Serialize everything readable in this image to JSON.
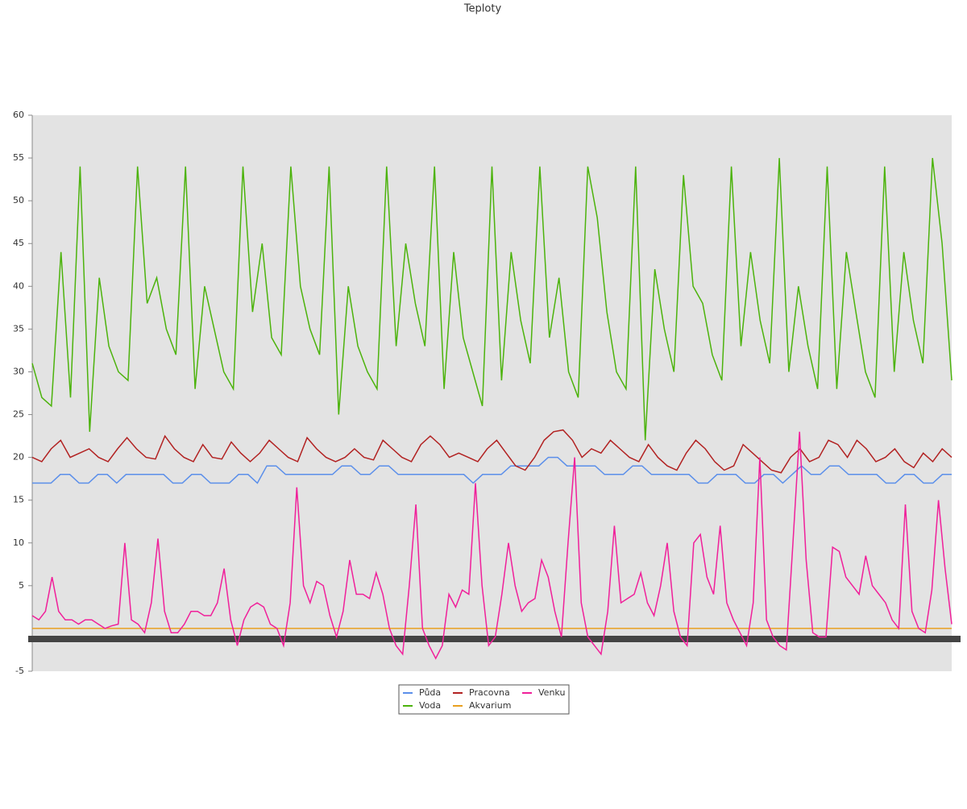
{
  "chart_data": {
    "type": "line",
    "title": "Teploty",
    "ylim": [
      -5,
      60
    ],
    "yticks": [
      -5,
      5,
      10,
      15,
      20,
      25,
      30,
      35,
      40,
      45,
      50,
      55,
      60
    ],
    "grid": false,
    "legend": "bottom",
    "series": [
      {
        "name": "Půda",
        "color": "#5b8fea",
        "values": [
          17,
          17,
          17,
          18,
          18,
          17,
          17,
          18,
          18,
          17,
          18,
          18,
          18,
          18,
          18,
          17,
          17,
          18,
          18,
          17,
          17,
          17,
          18,
          18,
          17,
          19,
          19,
          18,
          18,
          18,
          18,
          18,
          18,
          19,
          19,
          18,
          18,
          19,
          19,
          18,
          18,
          18,
          18,
          18,
          18,
          18,
          18,
          17,
          18,
          18,
          18,
          19,
          19,
          19,
          19,
          20,
          20,
          19,
          19,
          19,
          19,
          18,
          18,
          18,
          19,
          19,
          18,
          18,
          18,
          18,
          18,
          17,
          17,
          18,
          18,
          18,
          17,
          17,
          18,
          18,
          17,
          18,
          19,
          18,
          18,
          19,
          19,
          18,
          18,
          18,
          18,
          17,
          17,
          18,
          18,
          17,
          17,
          18,
          18
        ]
      },
      {
        "name": "Voda",
        "color": "#4cb30c",
        "values": [
          31,
          27,
          26,
          44,
          27,
          54,
          23,
          41,
          33,
          30,
          29,
          54,
          38,
          41,
          35,
          32,
          54,
          28,
          40,
          35,
          30,
          28,
          54,
          37,
          45,
          34,
          32,
          54,
          40,
          35,
          32,
          54,
          25,
          40,
          33,
          30,
          28,
          54,
          33,
          45,
          38,
          33,
          54,
          28,
          44,
          34,
          30,
          26,
          54,
          29,
          44,
          36,
          31,
          54,
          34,
          41,
          30,
          27,
          54,
          48,
          37,
          30,
          28,
          54,
          22,
          42,
          35,
          30,
          53,
          40,
          38,
          32,
          29,
          54,
          33,
          44,
          36,
          31,
          55,
          30,
          40,
          33,
          28,
          54,
          28,
          44,
          37,
          30,
          27,
          54,
          30,
          44,
          36,
          31,
          55,
          45,
          29
        ]
      },
      {
        "name": "Pracovna",
        "color": "#b22222",
        "values": [
          20,
          19.5,
          21,
          22,
          20,
          20.5,
          21,
          20,
          19.5,
          21,
          22.3,
          21,
          20,
          19.8,
          22.5,
          21,
          20,
          19.5,
          21.5,
          20,
          19.8,
          21.8,
          20.5,
          19.5,
          20.5,
          22,
          21,
          20,
          19.5,
          22.3,
          21,
          20,
          19.5,
          20,
          21,
          20,
          19.7,
          22,
          21,
          20,
          19.5,
          21.5,
          22.5,
          21.5,
          20,
          20.5,
          20,
          19.5,
          21,
          22,
          20.5,
          19,
          18.5,
          20,
          22,
          23,
          23.2,
          22,
          20,
          21,
          20.5,
          22,
          21,
          20,
          19.5,
          21.5,
          20,
          19,
          18.5,
          20.5,
          22,
          21,
          19.5,
          18.5,
          19,
          21.5,
          20.5,
          19.5,
          18.5,
          18.2,
          20,
          21,
          19.5,
          20,
          22,
          21.5,
          20,
          22,
          21,
          19.5,
          20,
          21,
          19.5,
          18.8,
          20.5,
          19.5,
          21,
          20
        ]
      },
      {
        "name": "Akvarium",
        "color": "#e8a020",
        "values": [
          0,
          0,
          0,
          0,
          0
        ]
      },
      {
        "name": "Venku",
        "color": "#f0209a",
        "values": [
          1.5,
          1,
          2,
          6,
          2,
          1,
          1,
          0.5,
          1,
          1,
          0.5,
          0,
          0.3,
          0.5,
          10,
          1,
          0.5,
          -0.5,
          3,
          10.5,
          2,
          -0.5,
          -0.5,
          0.5,
          2,
          2,
          1.5,
          1.5,
          3,
          7,
          1,
          -2,
          1,
          2.5,
          3,
          2.5,
          0.5,
          0,
          -2,
          3,
          16.5,
          5,
          3,
          5.5,
          5,
          1.5,
          -1,
          2,
          8,
          4,
          4,
          3.5,
          6.5,
          4,
          0,
          -2,
          -3,
          5,
          14.5,
          0,
          -2,
          -3.5,
          -2,
          4,
          2.5,
          4.5,
          4,
          17,
          5,
          -2,
          -1,
          4,
          10,
          5,
          2,
          3,
          3.5,
          8,
          6,
          2,
          -1,
          10,
          20,
          3,
          -1,
          -2,
          -3,
          2,
          12,
          3,
          3.5,
          4,
          6.5,
          3,
          1.5,
          5,
          10,
          2,
          -1,
          -2,
          10,
          11,
          6,
          4,
          12,
          3,
          1,
          -0.5,
          -2,
          3,
          20,
          1,
          -1,
          -2,
          -2.5,
          10,
          23,
          8,
          -0.5,
          -1,
          -1,
          9.5,
          9,
          6,
          5,
          4,
          8.5,
          5,
          4,
          3,
          1,
          0,
          14.5,
          2,
          0,
          -0.5,
          4.5,
          15,
          7,
          0.5
        ]
      }
    ]
  }
}
